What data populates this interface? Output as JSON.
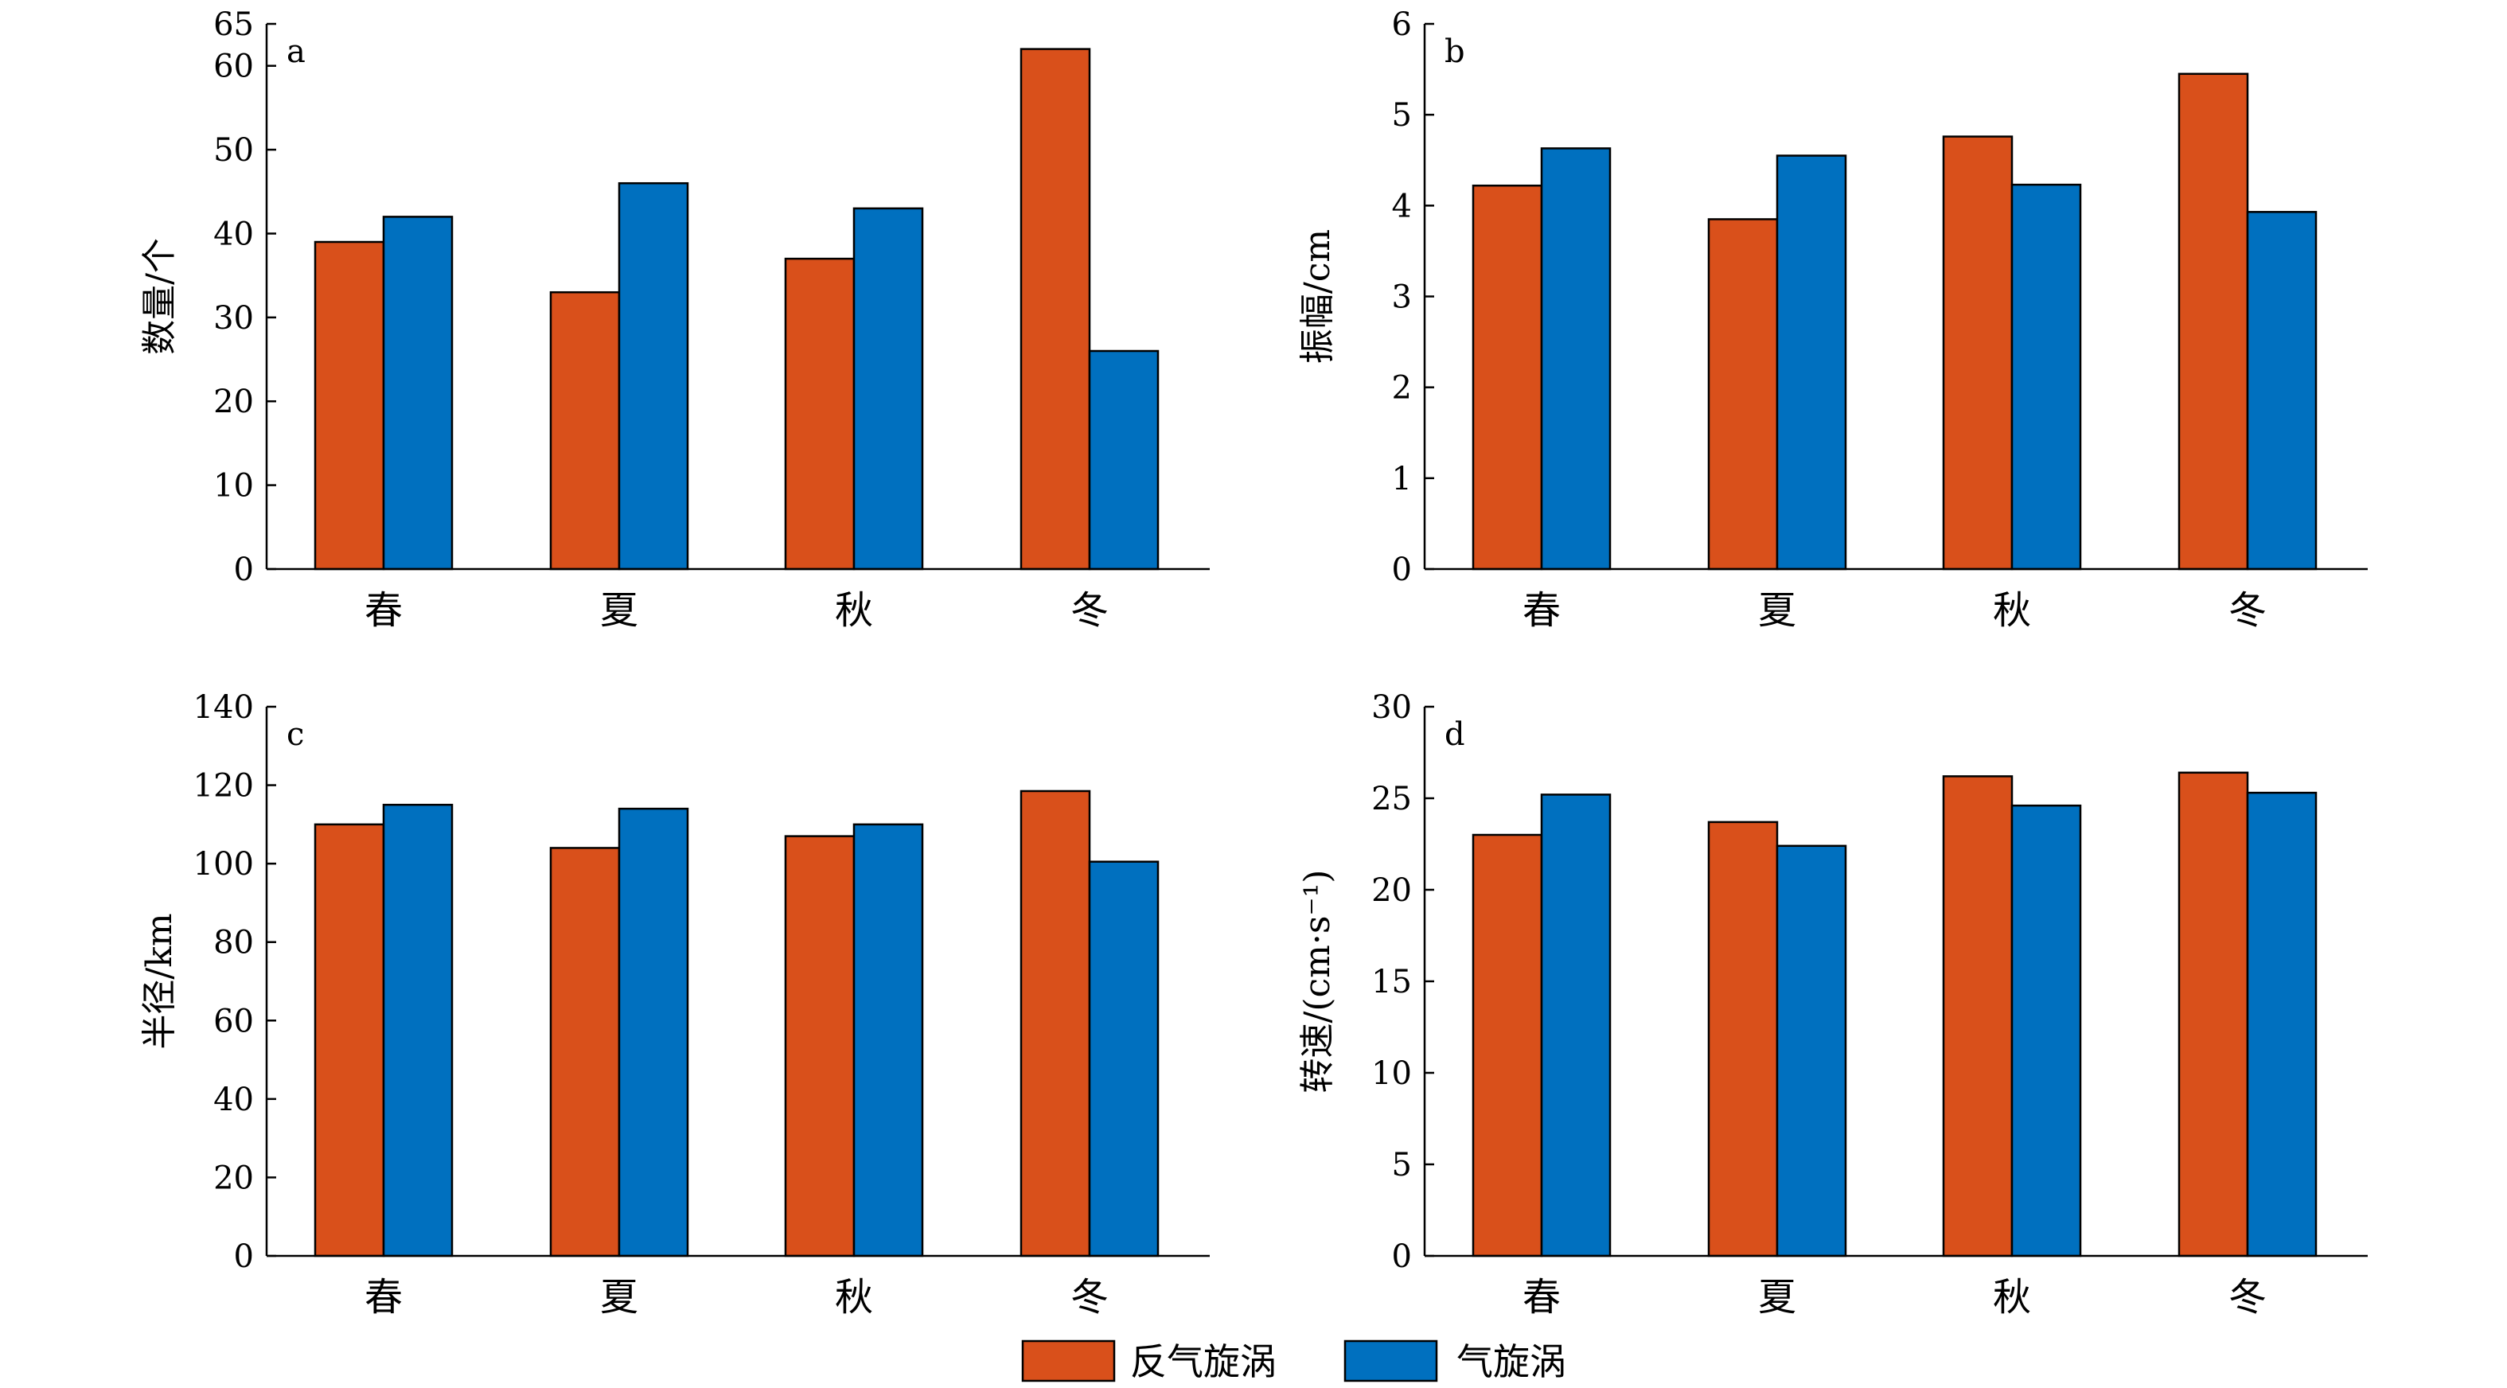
{
  "colors": {
    "anticyclonic": "#D9501B",
    "cyclonic": "#0070BF"
  },
  "legend": [
    {
      "label": "反气旋涡",
      "color": "#D9501B"
    },
    {
      "label": "气旋涡",
      "color": "#0070BF"
    }
  ],
  "chart_data": [
    {
      "type": "bar",
      "panel": "a",
      "categories": [
        "春",
        "夏",
        "秋",
        "冬"
      ],
      "ylabel": "数量/个",
      "ylim": [
        0,
        65
      ],
      "yticks": [
        0,
        10,
        20,
        30,
        40,
        50,
        60,
        65
      ],
      "series": [
        {
          "name": "反气旋涡",
          "values": [
            39,
            33,
            37,
            62
          ]
        },
        {
          "name": "气旋涡",
          "values": [
            42,
            46,
            43,
            26
          ]
        }
      ]
    },
    {
      "type": "bar",
      "panel": "b",
      "categories": [
        "春",
        "夏",
        "秋",
        "冬"
      ],
      "ylabel": "振幅/cm",
      "ylim": [
        0,
        6
      ],
      "yticks": [
        0,
        1,
        2,
        3,
        4,
        5,
        6
      ],
      "series": [
        {
          "name": "反气旋涡",
          "values": [
            4.22,
            3.85,
            4.76,
            5.45
          ]
        },
        {
          "name": "气旋涡",
          "values": [
            4.63,
            4.55,
            4.23,
            3.93
          ]
        }
      ]
    },
    {
      "type": "bar",
      "panel": "c",
      "categories": [
        "春",
        "夏",
        "秋",
        "冬"
      ],
      "ylabel": "半径/km",
      "ylim": [
        0,
        140
      ],
      "yticks": [
        0,
        20,
        40,
        60,
        80,
        100,
        120,
        140
      ],
      "series": [
        {
          "name": "反气旋涡",
          "values": [
            110,
            104,
            107,
            118.5
          ]
        },
        {
          "name": "气旋涡",
          "values": [
            115,
            114,
            110,
            100.5
          ]
        }
      ]
    },
    {
      "type": "bar",
      "panel": "d",
      "categories": [
        "春",
        "夏",
        "秋",
        "冬"
      ],
      "ylabel": "转速/(cm·s⁻¹)",
      "ylim": [
        0,
        30
      ],
      "yticks": [
        0,
        5,
        10,
        15,
        20,
        25,
        30
      ],
      "series": [
        {
          "name": "反气旋涡",
          "values": [
            23,
            23.7,
            26.2,
            26.4
          ]
        },
        {
          "name": "气旋涡",
          "values": [
            25.2,
            22.4,
            24.6,
            25.3
          ]
        }
      ]
    }
  ]
}
